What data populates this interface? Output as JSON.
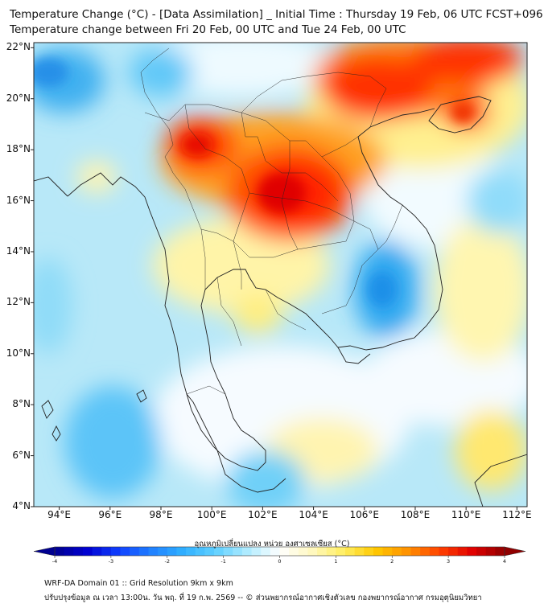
{
  "header": {
    "title_line1": "Temperature Change (°C) - [Data Assimilation] _ Initial Time : Thursday 19 Feb, 06 UTC FCST+096",
    "title_line2": "Temperature change between Fri 20 Feb, 00 UTC and Tue 24 Feb, 00 UTC"
  },
  "map": {
    "lat_labels": [
      "22°N",
      "20°N",
      "18°N",
      "16°N",
      "14°N",
      "12°N",
      "10°N",
      "8°N",
      "6°N",
      "4°N"
    ],
    "lon_labels": [
      "94°E",
      "96°E",
      "98°E",
      "100°E",
      "102°E",
      "104°E",
      "106°E",
      "108°E",
      "110°E",
      "112°E"
    ],
    "lat_values": [
      22,
      20,
      18,
      16,
      14,
      12,
      10,
      8,
      6,
      4
    ],
    "lon_values": [
      94,
      96,
      98,
      100,
      102,
      104,
      106,
      108,
      110,
      112
    ],
    "extent": {
      "lon_min": 93,
      "lon_max": 112.4,
      "lat_min": 4,
      "lat_max": 22.2
    }
  },
  "colorbar": {
    "title": "อุณหภูมิเปลี่ยนแปลง หน่วย องศาเซลเซียส (°C)",
    "tick_labels": [
      "-4",
      "-3",
      "-2",
      "-1",
      "0",
      "1",
      "2",
      "3",
      "4"
    ],
    "tick_values": [
      -4,
      -3,
      -2,
      -1,
      0,
      1,
      2,
      3,
      4
    ],
    "range": [
      -4,
      4
    ],
    "colors": [
      "#000090",
      "#0000d0",
      "#1040ff",
      "#2080ff",
      "#30b0ff",
      "#60d0ff",
      "#b0ecff",
      "#ffffff",
      "#fff8c0",
      "#ffee60",
      "#ffc800",
      "#ff9000",
      "#ff4000",
      "#e00000",
      "#900000"
    ]
  },
  "footer": {
    "line1": "WRF-DA Domain 01 :: Grid Resolution 9km x 9km",
    "line2": "ปรับปรุงข้อมูล ณ เวลา 13:00น. วัน พฤ. ที่ 19 ก.พ. 2569 -- © ส่วนพยากรณ์อากาศเชิงตัวเลข กองพยากรณ์อากาศ กรมอุตุนิยมวิทยา"
  }
}
